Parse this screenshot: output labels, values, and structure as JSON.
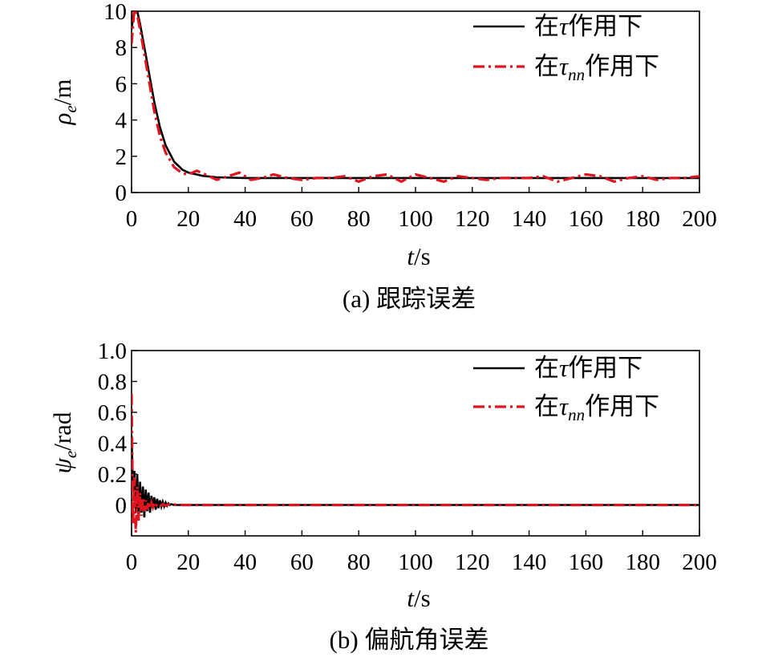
{
  "chart_data": [
    {
      "type": "line",
      "caption": "(a) 跟踪误差",
      "xlabel_var": "t",
      "xlabel_unit": "/s",
      "ylabel_var": "ρ",
      "ylabel_sub": "e",
      "ylabel_unit": "/m",
      "xlim": [
        0,
        200
      ],
      "ylim": [
        0,
        10
      ],
      "xticks": [
        0,
        20,
        40,
        60,
        80,
        100,
        120,
        140,
        160,
        180,
        200
      ],
      "yticks": [
        0,
        2,
        4,
        6,
        8,
        10
      ],
      "ytick_labels": [
        "0",
        "2",
        "4",
        "6",
        "8",
        "10"
      ],
      "legend": {
        "position": "top-right",
        "entries": [
          {
            "prefix": "在",
            "symbol": "τ",
            "sub": "",
            "suffix": "作用下",
            "color": "#000000",
            "style": "solid"
          },
          {
            "prefix": "在",
            "symbol": "τ",
            "sub": "nn",
            "suffix": "作用下",
            "color": "#e0141e",
            "style": "dashdot"
          }
        ]
      },
      "series": [
        {
          "color": "#000000",
          "style": "solid",
          "x": [
            0,
            1,
            2,
            3,
            5,
            8,
            10,
            12,
            15,
            18,
            20,
            25,
            30,
            35,
            40,
            50,
            60,
            80,
            100,
            120,
            140,
            160,
            180,
            200
          ],
          "y": [
            9.0,
            10.2,
            10.0,
            9.3,
            7.6,
            5.0,
            3.6,
            2.6,
            1.7,
            1.25,
            1.1,
            0.92,
            0.84,
            0.82,
            0.8,
            0.8,
            0.8,
            0.8,
            0.8,
            0.8,
            0.8,
            0.8,
            0.8,
            0.8
          ]
        },
        {
          "color": "#e0141e",
          "style": "dashdot",
          "x": [
            0,
            1,
            2,
            3,
            5,
            8,
            10,
            12,
            15,
            18,
            20,
            23,
            26,
            30,
            34,
            38,
            42,
            46,
            50,
            55,
            60,
            65,
            70,
            75,
            80,
            85,
            90,
            95,
            100,
            105,
            110,
            115,
            120,
            125,
            130,
            135,
            140,
            145,
            150,
            155,
            160,
            165,
            170,
            175,
            180,
            185,
            190,
            195,
            200
          ],
          "y": [
            8.2,
            10.1,
            9.8,
            9.0,
            7.2,
            4.5,
            3.1,
            2.2,
            1.4,
            1.05,
            1.0,
            1.2,
            1.0,
            0.7,
            0.9,
            1.1,
            0.7,
            0.8,
            1.0,
            0.8,
            0.7,
            0.8,
            0.8,
            0.9,
            0.6,
            0.9,
            1.0,
            0.6,
            1.0,
            0.8,
            0.6,
            0.9,
            0.8,
            0.7,
            0.8,
            0.8,
            0.8,
            0.9,
            0.6,
            0.8,
            1.0,
            0.9,
            0.6,
            0.8,
            0.9,
            0.7,
            0.8,
            0.8,
            0.9
          ]
        }
      ]
    },
    {
      "type": "line",
      "caption": "(b) 偏航角误差",
      "xlabel_var": "t",
      "xlabel_unit": "/s",
      "ylabel_var": "ψ",
      "ylabel_sub": "e",
      "ylabel_unit": "/rad",
      "xlim": [
        0,
        200
      ],
      "ylim": [
        -0.2,
        1.0
      ],
      "xticks": [
        0,
        20,
        40,
        60,
        80,
        100,
        120,
        140,
        160,
        180,
        200
      ],
      "yticks": [
        0,
        0.2,
        0.4,
        0.6,
        0.8,
        1.0
      ],
      "ytick_labels": [
        "0",
        "0.2",
        "0.4",
        "0.6",
        "0.8",
        "1.0"
      ],
      "legend": {
        "position": "top-right",
        "entries": [
          {
            "prefix": "在",
            "symbol": "τ",
            "sub": "",
            "suffix": "作用下",
            "color": "#000000",
            "style": "solid"
          },
          {
            "prefix": "在",
            "symbol": "τ",
            "sub": "nn",
            "suffix": "作用下",
            "color": "#e0141e",
            "style": "dashdot"
          }
        ]
      },
      "series": [
        {
          "color": "#000000",
          "style": "solid",
          "x": [
            0,
            0.5,
            1,
            1.5,
            2,
            2.5,
            3,
            3.5,
            4,
            4.5,
            5,
            5.5,
            6,
            6.5,
            7,
            7.5,
            8,
            8.5,
            9,
            9.5,
            10,
            10.5,
            11,
            11.5,
            12,
            12.5,
            13,
            13.5,
            14,
            15,
            16,
            18,
            20,
            50,
            100,
            150,
            200
          ],
          "y": [
            0.45,
            0.1,
            0.22,
            -0.05,
            0.2,
            -0.1,
            0.15,
            -0.05,
            0.12,
            -0.08,
            0.1,
            -0.04,
            0.08,
            -0.05,
            0.06,
            -0.02,
            0.05,
            -0.03,
            0.04,
            -0.02,
            0.03,
            -0.01,
            0.02,
            -0.01,
            0.015,
            -0.005,
            0.01,
            0.0,
            0.005,
            0.0,
            0.0,
            0.0,
            0.0,
            0.0,
            0.0,
            0.0,
            0.0
          ]
        },
        {
          "color": "#e0141e",
          "style": "dashdot",
          "x": [
            0,
            0.5,
            1,
            1.5,
            2,
            2.5,
            3,
            3.5,
            4,
            4.5,
            5,
            5.5,
            6,
            6.5,
            7,
            7.5,
            8,
            8.5,
            9,
            10,
            11,
            12,
            13,
            14,
            15,
            16,
            17,
            18,
            20,
            50,
            100,
            150,
            200
          ],
          "y": [
            0.72,
            -0.12,
            0.18,
            -0.18,
            0.12,
            -0.1,
            0.08,
            -0.07,
            0.05,
            -0.04,
            0.03,
            -0.03,
            0.02,
            -0.02,
            0.015,
            -0.015,
            0.01,
            -0.01,
            0.008,
            -0.006,
            0.005,
            -0.004,
            0.003,
            0.0,
            0.003,
            0.0,
            0.002,
            0.0,
            0.0,
            0.0,
            0.0,
            0.0,
            0.0
          ]
        }
      ]
    }
  ]
}
